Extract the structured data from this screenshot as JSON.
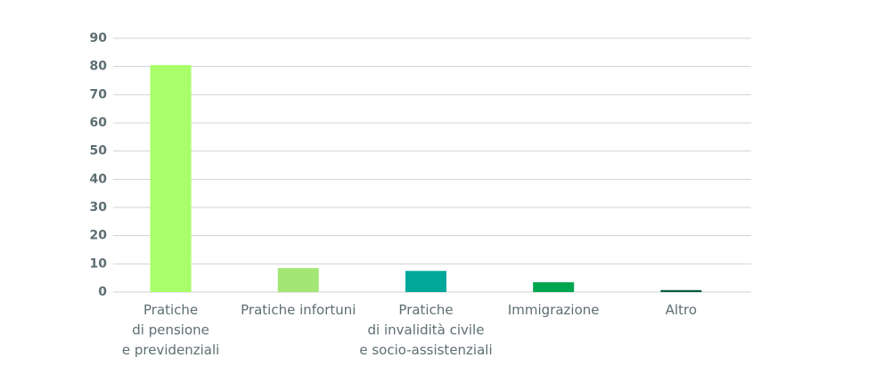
{
  "chart_data": {
    "type": "bar",
    "categories": [
      [
        "Pratiche",
        "di pensione",
        "e previdenziali"
      ],
      [
        "Pratiche infortuni"
      ],
      [
        "Pratiche",
        "di invalidità civile",
        "e socio-assistenziali"
      ],
      [
        "Immigrazione"
      ],
      [
        "Altro"
      ]
    ],
    "values": [
      80.5,
      8.5,
      7.5,
      3.5,
      0.7
    ],
    "colors": [
      "#a8ff6a",
      "#a3e673",
      "#00a89a",
      "#00a54f",
      "#005a3c"
    ],
    "ylim": [
      0,
      90
    ],
    "yticks": [
      0,
      10,
      20,
      30,
      40,
      50,
      60,
      70,
      80,
      90
    ],
    "grid": true
  }
}
